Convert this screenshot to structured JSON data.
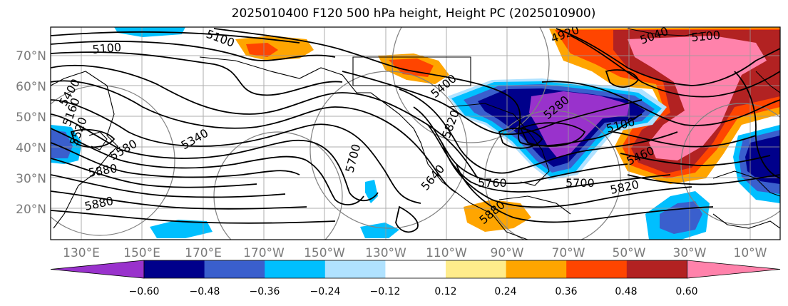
{
  "title": "2025010400 F120 500 hPa height, Height PC (2025010900)",
  "latitude_labels": [
    "70°N",
    "60°N",
    "50°N",
    "40°N",
    "30°N",
    "20°N"
  ],
  "longitude_labels": [
    "130°E",
    "150°E",
    "170°E",
    "170°W",
    "150°W",
    "130°W",
    "110°W",
    "90°W",
    "70°W",
    "50°W",
    "30°W",
    "10°W"
  ],
  "colorbar": {
    "colors": [
      "#9932cc",
      "#00008b",
      "#3a5fcd",
      "#00bfff",
      "#b0e2ff",
      "#ffffff",
      "#ffec8b",
      "#ffa500",
      "#ff4500",
      "#b22222",
      "#ff82ab"
    ],
    "tick_labels": [
      "−0.60",
      "−0.48",
      "−0.36",
      "−0.24",
      "−0.12",
      "0.12",
      "0.24",
      "0.36",
      "0.48",
      "0.60"
    ]
  },
  "contour_labels": [
    "5100",
    "5100",
    "5400",
    "5520",
    "5580",
    "5880",
    "5340",
    "5880",
    "5820",
    "5640",
    "5760",
    "5700",
    "5820",
    "5880",
    "5460",
    "4920",
    "5040",
    "5100",
    "5280",
    "5100",
    "5700",
    "5160",
    "5400"
  ]
}
